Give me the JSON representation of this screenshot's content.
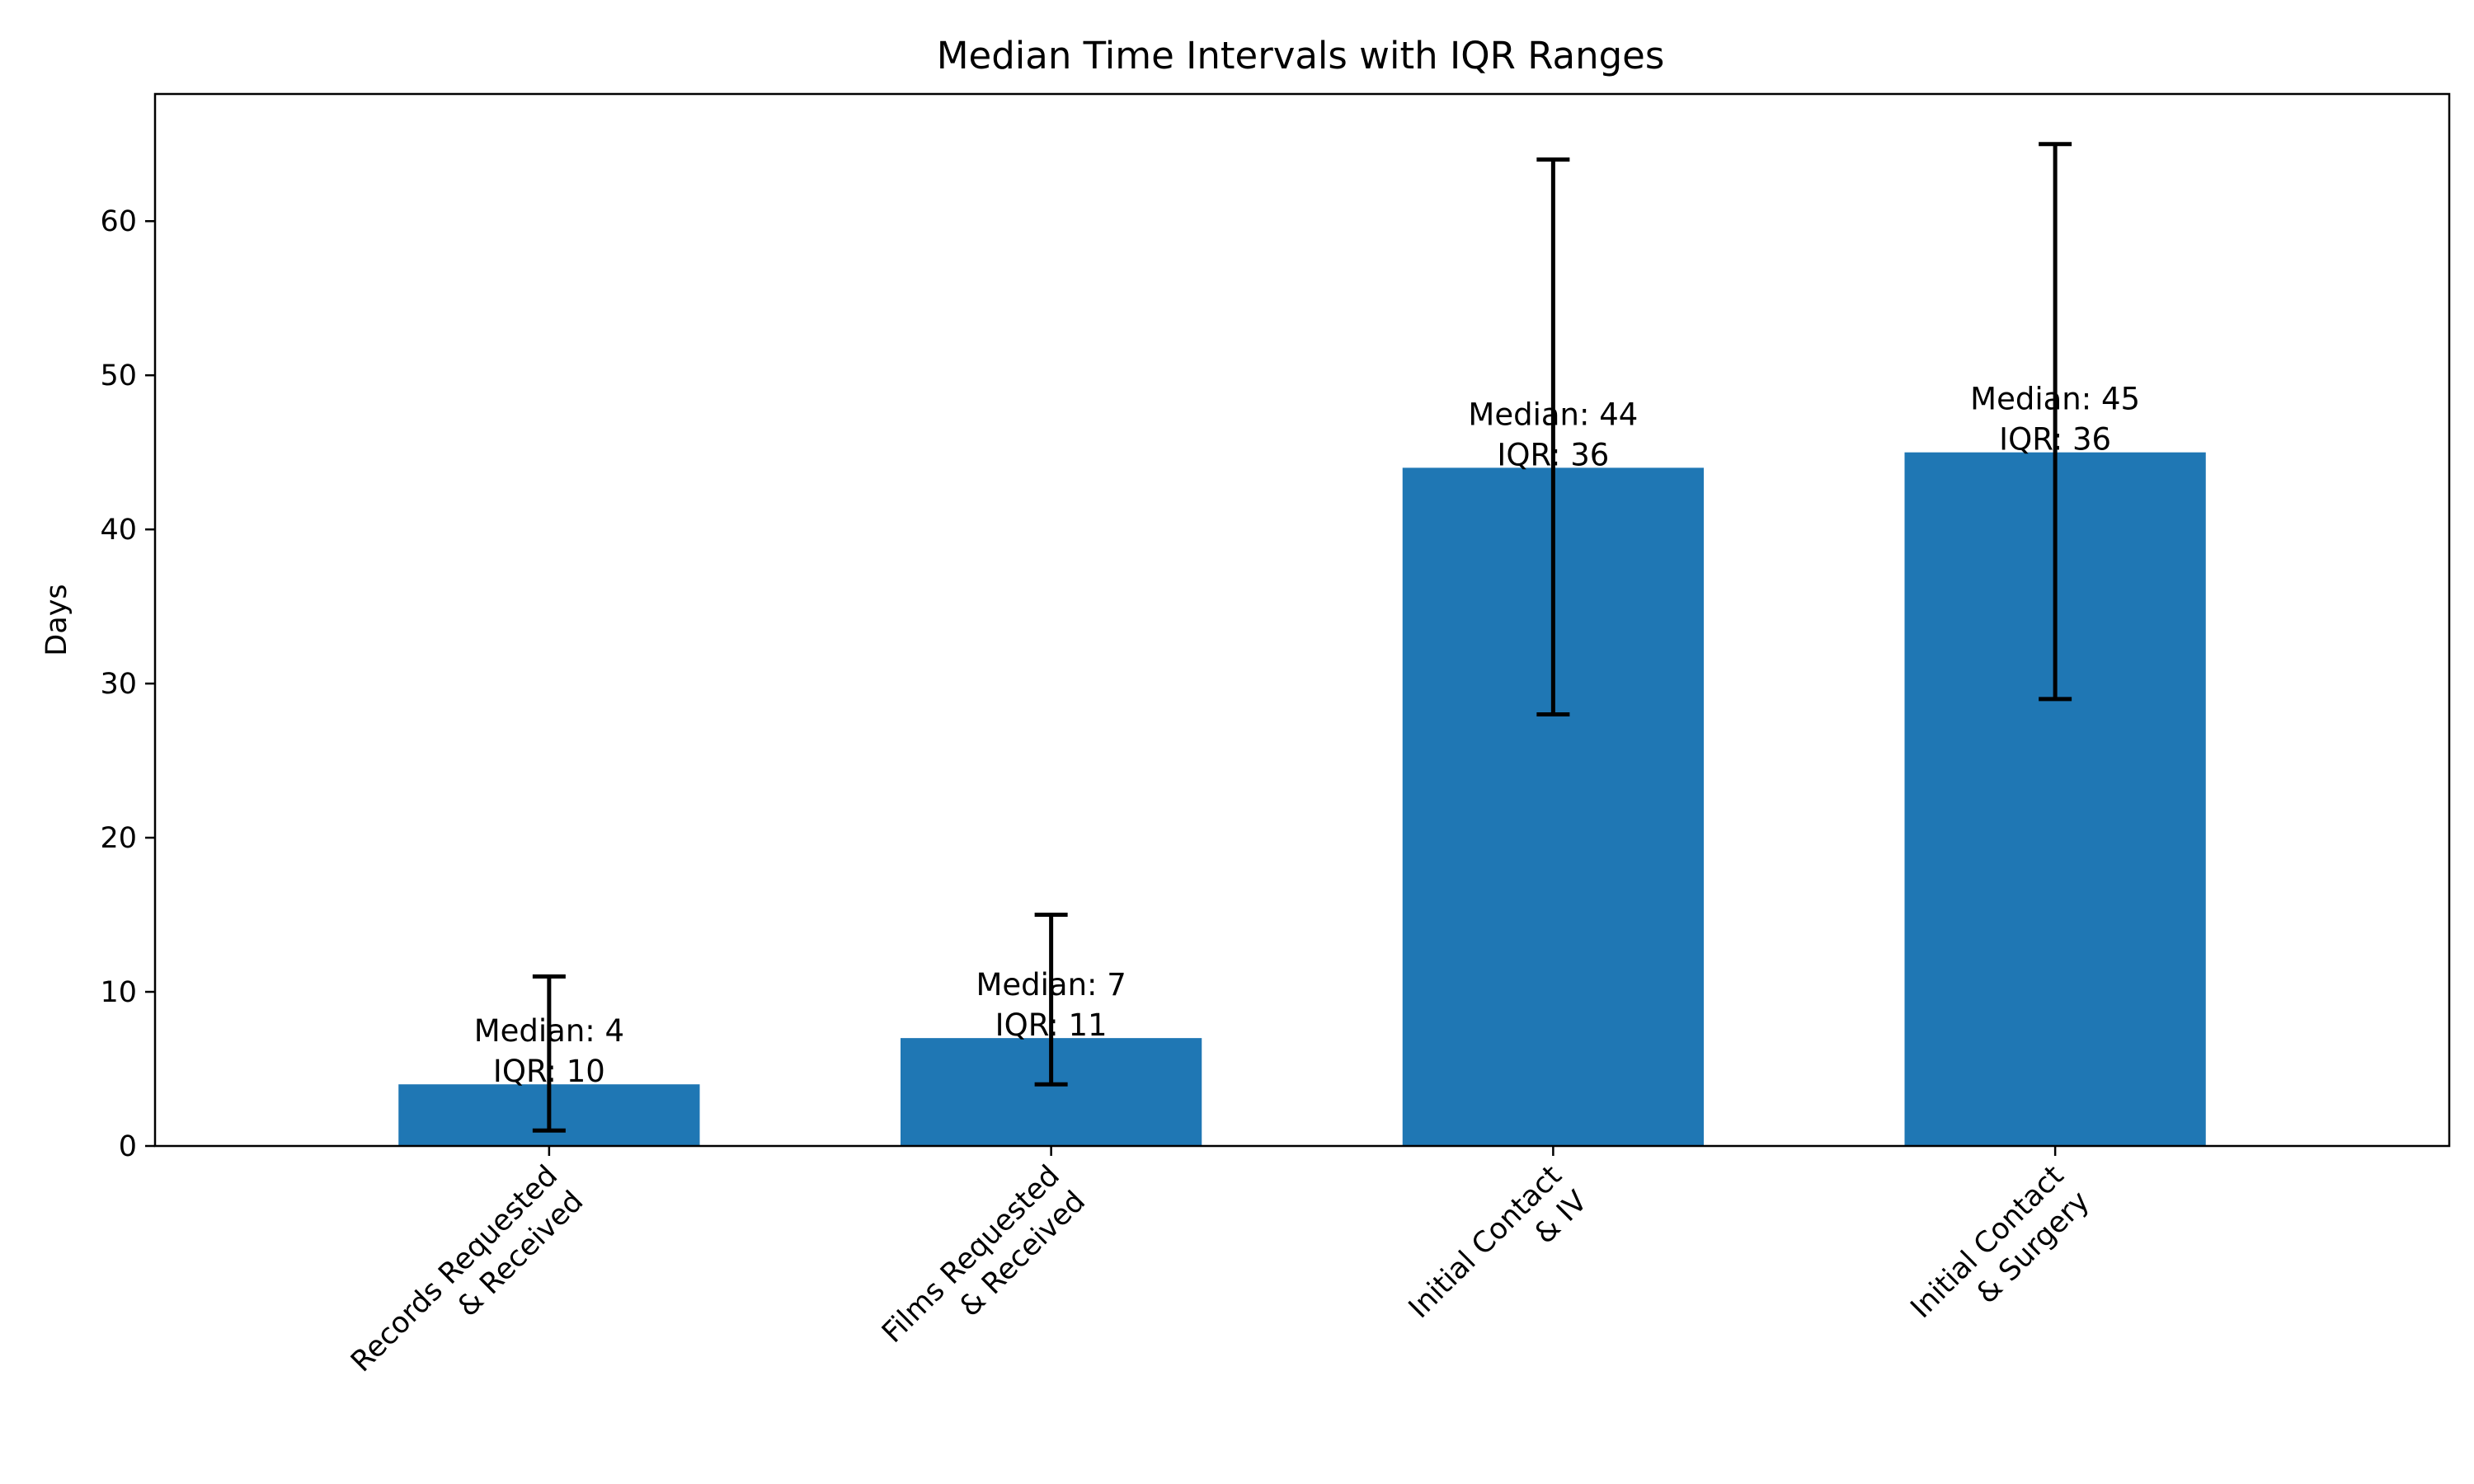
{
  "chart_data": {
    "type": "bar",
    "title": "Median Time Intervals with IQR Ranges",
    "xlabel": "",
    "ylabel": "Days",
    "ylim": [
      0,
      68.25
    ],
    "yticks": [
      0,
      10,
      20,
      30,
      40,
      50,
      60
    ],
    "grid": false,
    "categories": [
      [
        "Records Requested",
        "& Received"
      ],
      [
        "Films Requested",
        "& Received"
      ],
      [
        "Initial Contact",
        "& IV"
      ],
      [
        "Initial Contact",
        "& Surgery"
      ]
    ],
    "values": [
      4,
      7,
      44,
      45
    ],
    "error_low": [
      1,
      4,
      28,
      29
    ],
    "error_high": [
      11,
      15,
      64,
      65
    ],
    "bar_labels": [
      [
        "Median: 4",
        "IQR: 10"
      ],
      [
        "Median: 7",
        "IQR: 11"
      ],
      [
        "Median: 44",
        "IQR: 36"
      ],
      [
        "Median: 45",
        "IQR: 36"
      ]
    ],
    "colors": {
      "bar": "#1f77b4",
      "errorbar": "#000000",
      "axes": "#000000"
    }
  }
}
